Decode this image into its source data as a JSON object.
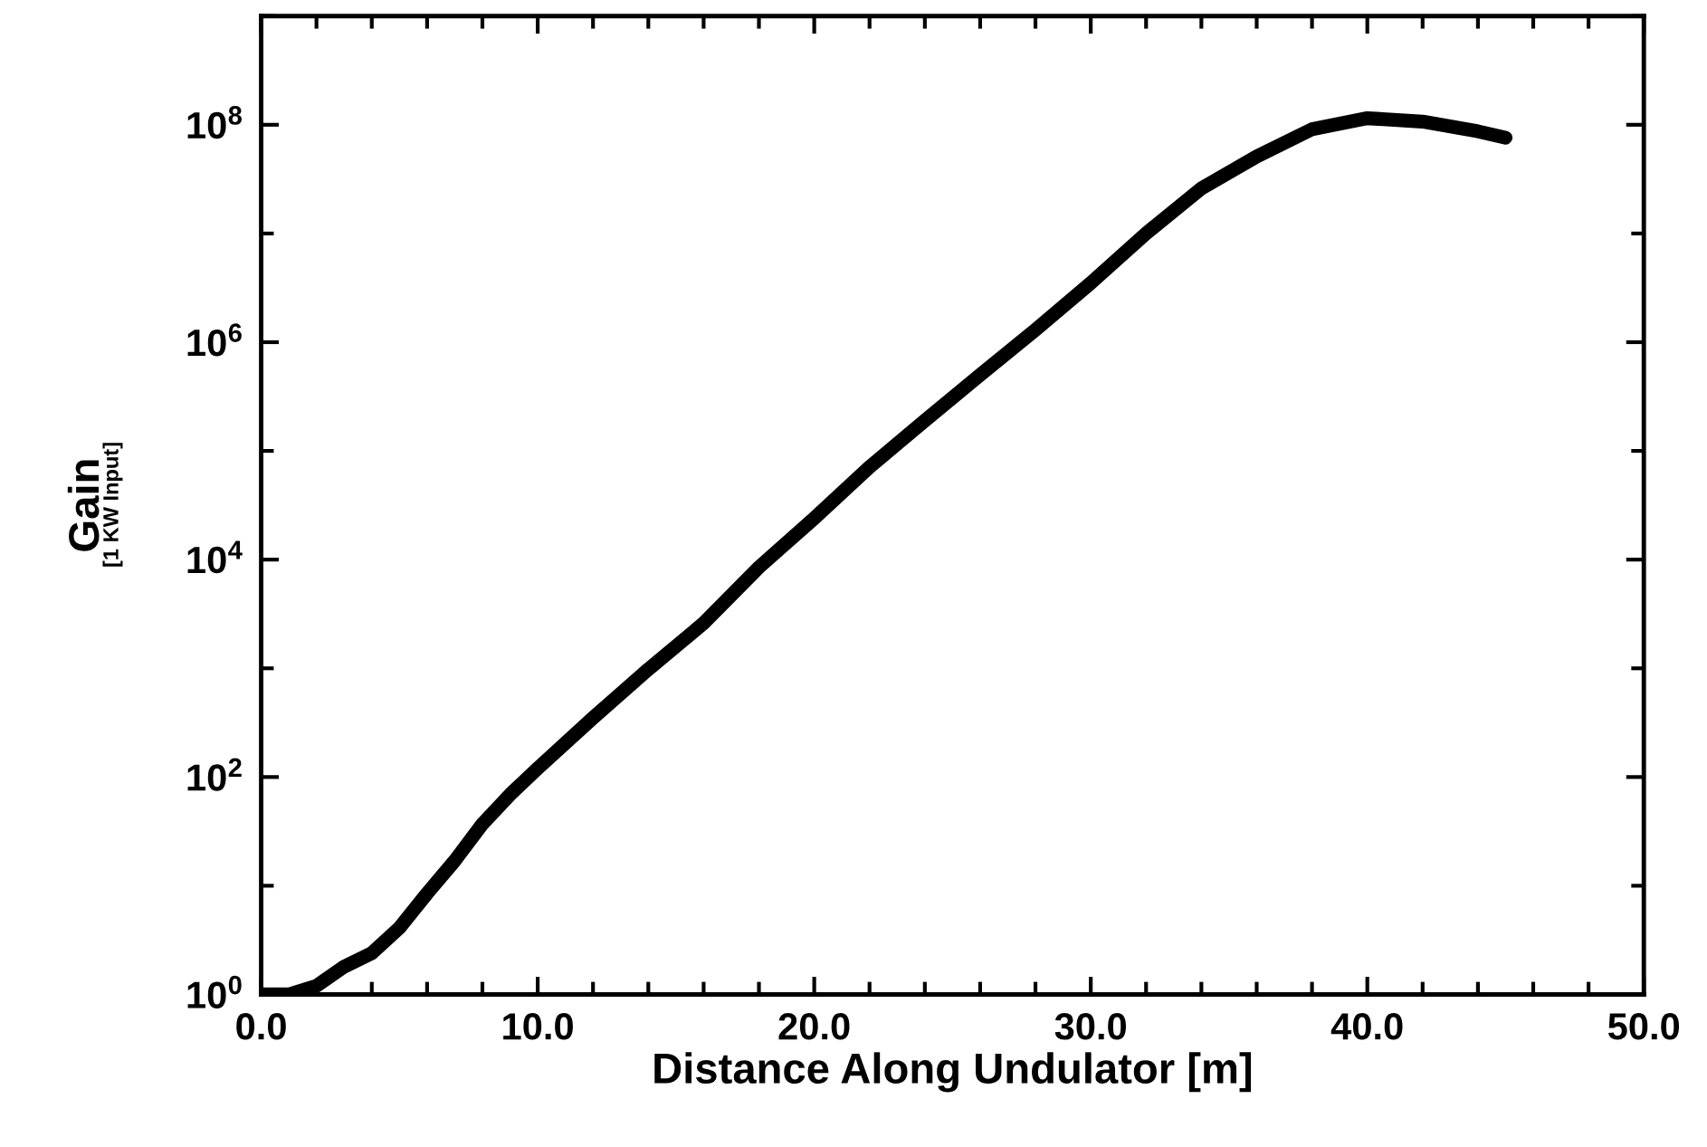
{
  "chart_data": {
    "type": "line",
    "xlabel": "Distance Along Undulator [m]",
    "ylabel": "Gain",
    "annotations": [
      "[1 KW Input]"
    ],
    "x": [
      0,
      1,
      2,
      3,
      4,
      5,
      6,
      7,
      8,
      9,
      10,
      12,
      14,
      16,
      18,
      20,
      22,
      24,
      26,
      28,
      30,
      32,
      34,
      36,
      38,
      40,
      42,
      44,
      45
    ],
    "series": [
      {
        "color": "#000000",
        "values": [
          1.0,
          1.0,
          1.2,
          1.8,
          2.4,
          4.1,
          8.5,
          17,
          37,
          69,
          120,
          350,
          980,
          2600,
          8500,
          24000,
          71000,
          190000,
          500000,
          1300000,
          3500000,
          10000000,
          26000000,
          51000000,
          91000000,
          115000000,
          107000000,
          87000000,
          76000000
        ]
      }
    ],
    "log": "y",
    "xlim": [
      0,
      50
    ],
    "ylim": [
      1,
      1000000000
    ],
    "xticks": [
      {
        "value": 0,
        "label": "0.0"
      },
      {
        "value": 2,
        "label": null
      },
      {
        "value": 4,
        "label": null
      },
      {
        "value": 6,
        "label": null
      },
      {
        "value": 8,
        "label": null
      },
      {
        "value": 10,
        "label": "10.0"
      },
      {
        "value": 12,
        "label": null
      },
      {
        "value": 14,
        "label": null
      },
      {
        "value": 16,
        "label": null
      },
      {
        "value": 18,
        "label": null
      },
      {
        "value": 20,
        "label": "20.0"
      },
      {
        "value": 22,
        "label": null
      },
      {
        "value": 24,
        "label": null
      },
      {
        "value": 26,
        "label": null
      },
      {
        "value": 28,
        "label": null
      },
      {
        "value": 30,
        "label": "30.0"
      },
      {
        "value": 32,
        "label": null
      },
      {
        "value": 34,
        "label": null
      },
      {
        "value": 36,
        "label": null
      },
      {
        "value": 38,
        "label": null
      },
      {
        "value": 40,
        "label": "40.0"
      },
      {
        "value": 42,
        "label": null
      },
      {
        "value": 44,
        "label": null
      },
      {
        "value": 46,
        "label": null
      },
      {
        "value": 48,
        "label": null
      },
      {
        "value": 50,
        "label": "50.0"
      }
    ],
    "yticks": [
      {
        "value": 1,
        "label": "10$^{0}$"
      },
      {
        "value": 10,
        "label": null
      },
      {
        "value": 100,
        "label": "10$^{2}$"
      },
      {
        "value": 1000,
        "label": null
      },
      {
        "value": 10000,
        "label": "10$^{4}$"
      },
      {
        "value": 100000,
        "label": null
      },
      {
        "value": 1000000,
        "label": "10$^{6}$"
      },
      {
        "value": 10000000,
        "label": null
      },
      {
        "value": 100000000,
        "label": "10$^{8}$"
      },
      {
        "value": 1000000000,
        "label": null
      }
    ],
    "grid": false,
    "line_style": "solid"
  }
}
